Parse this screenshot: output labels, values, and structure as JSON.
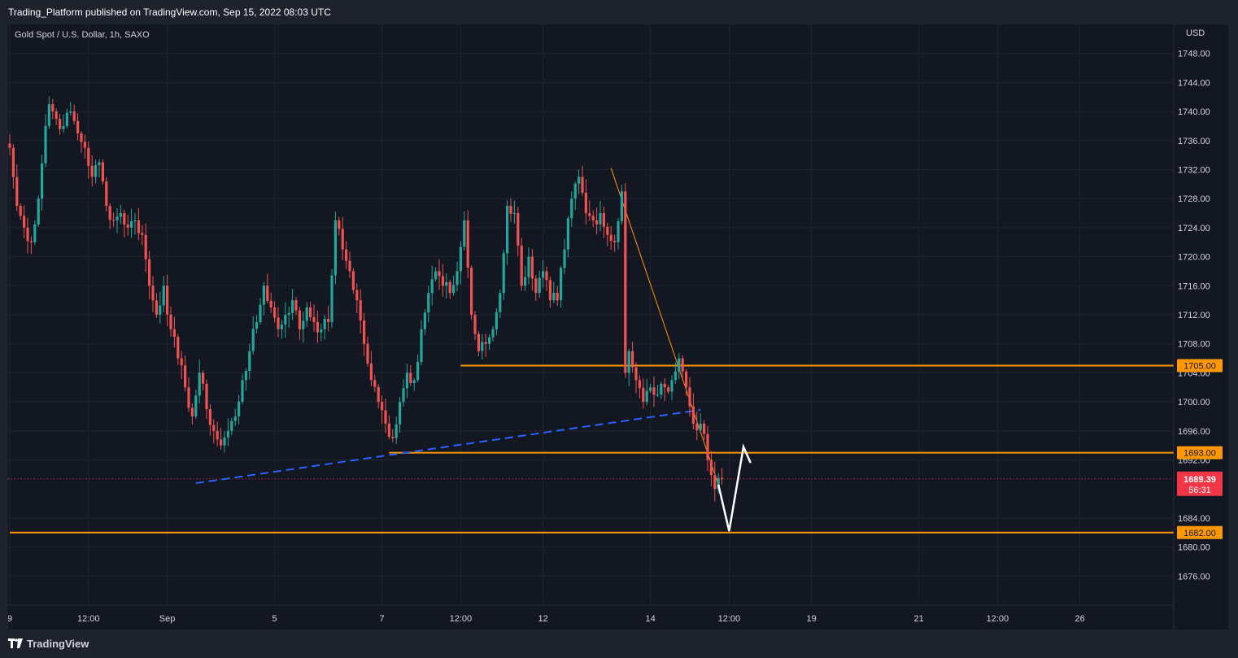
{
  "header": {
    "published_line": "Trading_Platform published on TradingView.com, Sep 15, 2022 08:03 UTC"
  },
  "chart_title": "Gold Spot / U.S. Dollar, 1h, SAXO",
  "footer": {
    "brand": "TradingView",
    "logo_icon": "tradingview-logo-icon"
  },
  "colors": {
    "background": "#131722",
    "frame": "#1e222d",
    "grid": "#1f2431",
    "up": "#26a69a",
    "down": "#ef5350",
    "level": "#ff9800",
    "trendline_blue": "#2962ff",
    "current_price": "#f23645",
    "axis_text": "#d1d4dc",
    "projection": "#ffffff"
  },
  "chart_data": {
    "type": "candlestick",
    "symbol": "Gold Spot / U.S. Dollar",
    "interval": "1h",
    "exchange": "SAXO",
    "currency": "USD",
    "ylim": [
      1672,
      1752
    ],
    "y_ticks": [
      "1748.00",
      "1744.00",
      "1740.00",
      "1736.00",
      "1732.00",
      "1728.00",
      "1724.00",
      "1720.00",
      "1716.00",
      "1712.00",
      "1708.00",
      "1704.00",
      "1700.00",
      "1696.00",
      "1692.00",
      "1684.00",
      "1680.00",
      "1676.00"
    ],
    "x_ticks": [
      {
        "label": "9",
        "index": 0
      },
      {
        "label": "12:00",
        "index": 22
      },
      {
        "label": "Sep",
        "index": 44
      },
      {
        "label": "5",
        "index": 74
      },
      {
        "label": "7",
        "index": 104
      },
      {
        "label": "12:00",
        "index": 126
      },
      {
        "label": "12",
        "index": 149
      },
      {
        "label": "14",
        "index": 179
      },
      {
        "label": "12:00",
        "index": 201
      },
      {
        "label": "19",
        "index": 224
      },
      {
        "label": "21",
        "index": 254
      },
      {
        "label": "12:00",
        "index": 276
      },
      {
        "label": "26",
        "index": 299
      }
    ],
    "total_slots": 340,
    "anchors": [
      [
        0,
        1735
      ],
      [
        2,
        1727
      ],
      [
        4,
        1724
      ],
      [
        6,
        1722
      ],
      [
        8,
        1728
      ],
      [
        10,
        1738
      ],
      [
        11,
        1741
      ],
      [
        13,
        1739
      ],
      [
        15,
        1738
      ],
      [
        17,
        1740
      ],
      [
        19,
        1737
      ],
      [
        21,
        1735
      ],
      [
        23,
        1731
      ],
      [
        25,
        1733
      ],
      [
        27,
        1727
      ],
      [
        29,
        1725
      ],
      [
        31,
        1726
      ],
      [
        33,
        1724
      ],
      [
        35,
        1725
      ],
      [
        37,
        1723
      ],
      [
        39,
        1716
      ],
      [
        41,
        1712
      ],
      [
        43,
        1716
      ],
      [
        45,
        1710
      ],
      [
        47,
        1706
      ],
      [
        49,
        1702
      ],
      [
        51,
        1698
      ],
      [
        53,
        1704
      ],
      [
        55,
        1699
      ],
      [
        57,
        1696
      ],
      [
        59,
        1694
      ],
      [
        61,
        1696
      ],
      [
        63,
        1698
      ],
      [
        65,
        1703
      ],
      [
        67,
        1707
      ],
      [
        69,
        1711
      ],
      [
        71,
        1716
      ],
      [
        73,
        1713
      ],
      [
        75,
        1710
      ],
      [
        77,
        1712
      ],
      [
        79,
        1714
      ],
      [
        81,
        1710
      ],
      [
        83,
        1713
      ],
      [
        85,
        1711
      ],
      [
        87,
        1710
      ],
      [
        89,
        1711
      ],
      [
        91,
        1725
      ],
      [
        93,
        1721
      ],
      [
        95,
        1718
      ],
      [
        97,
        1714
      ],
      [
        99,
        1708
      ],
      [
        101,
        1703
      ],
      [
        103,
        1700
      ],
      [
        105,
        1697
      ],
      [
        107,
        1695
      ],
      [
        109,
        1700
      ],
      [
        111,
        1704
      ],
      [
        113,
        1703
      ],
      [
        115,
        1710
      ],
      [
        117,
        1715
      ],
      [
        119,
        1718
      ],
      [
        121,
        1716
      ],
      [
        123,
        1715
      ],
      [
        125,
        1718
      ],
      [
        127,
        1725
      ],
      [
        129,
        1712
      ],
      [
        131,
        1707
      ],
      [
        133,
        1708
      ],
      [
        135,
        1710
      ],
      [
        137,
        1715
      ],
      [
        139,
        1727
      ],
      [
        141,
        1726
      ],
      [
        143,
        1716
      ],
      [
        145,
        1720
      ],
      [
        147,
        1715
      ],
      [
        149,
        1718
      ],
      [
        151,
        1714
      ],
      [
        153,
        1714
      ],
      [
        155,
        1721
      ],
      [
        157,
        1728
      ],
      [
        159,
        1731
      ],
      [
        161,
        1726
      ],
      [
        163,
        1725
      ],
      [
        165,
        1726
      ],
      [
        167,
        1723
      ],
      [
        169,
        1722
      ],
      [
        171,
        1729
      ],
      [
        172,
        1704
      ],
      [
        173,
        1707
      ],
      [
        175,
        1703
      ],
      [
        177,
        1700
      ],
      [
        179,
        1702
      ],
      [
        181,
        1701
      ],
      [
        183,
        1702
      ],
      [
        185,
        1703
      ],
      [
        187,
        1706
      ],
      [
        189,
        1702
      ],
      [
        191,
        1697
      ],
      [
        193,
        1697
      ],
      [
        195,
        1692
      ],
      [
        197,
        1688
      ],
      [
        199,
        1689.39
      ]
    ],
    "last_price": "1689.39",
    "countdown": "56:31",
    "levels": [
      {
        "price": 1705.0,
        "label": "1705.00",
        "from_index": 126
      },
      {
        "price": 1693.0,
        "label": "1693.00",
        "from_index": 106
      },
      {
        "price": 1682.0,
        "label": "1682.00",
        "from_index": 0
      }
    ],
    "trendlines": [
      {
        "name": "descending-trendline",
        "color": "orange",
        "from": [
          168,
          1732.2
        ],
        "to": [
          198,
          1688.6
        ]
      },
      {
        "name": "ascending-support-dashed",
        "color": "blue",
        "from": [
          52,
          1688.8
        ],
        "to": [
          193,
          1698.9
        ]
      }
    ],
    "projection_path": [
      [
        198,
        1688.6
      ],
      [
        201,
        1682.2
      ],
      [
        205,
        1693.8
      ],
      [
        207,
        1691.6
      ]
    ]
  }
}
